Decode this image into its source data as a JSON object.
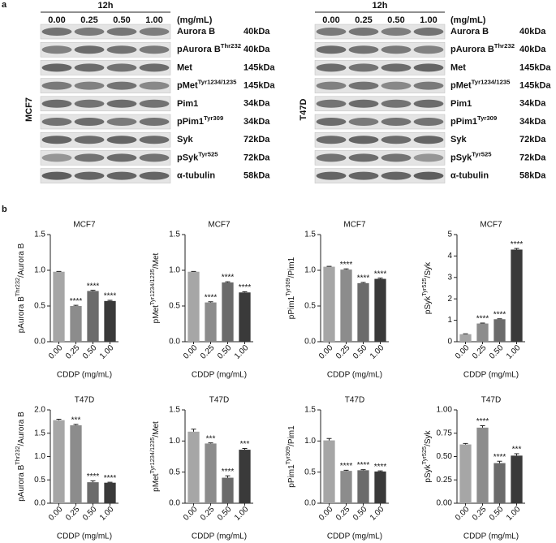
{
  "panel_labels": [
    "a",
    "b"
  ],
  "blots": [
    {
      "cell_line": "MCF7",
      "time": "12h",
      "unit": "(mg/mL)",
      "concentrations": [
        "0.00",
        "0.25",
        "0.50",
        "1.00"
      ],
      "rows": [
        {
          "label": [
            {
              "text": "Aurora  B"
            }
          ],
          "kda": "40kDa"
        },
        {
          "label": [
            {
              "text": "pAurora B"
            },
            {
              "text": "Thr232",
              "sup": true
            }
          ],
          "kda": "40kDa"
        },
        {
          "label": [
            {
              "text": "Met"
            }
          ],
          "kda": "145kDa"
        },
        {
          "label": [
            {
              "text": "pMet"
            },
            {
              "text": "Tyr1234/1235",
              "sup": true
            }
          ],
          "kda": "145kDa"
        },
        {
          "label": [
            {
              "text": "Pim1"
            }
          ],
          "kda": "34kDa"
        },
        {
          "label": [
            {
              "text": "pPim1"
            },
            {
              "text": "Tyr309",
              "sup": true
            }
          ],
          "kda": "34kDa"
        },
        {
          "label": [
            {
              "text": "Syk"
            }
          ],
          "kda": "72kDa"
        },
        {
          "label": [
            {
              "text": "pSyk"
            },
            {
              "text": "Tyr525",
              "sup": true
            }
          ],
          "kda": "72kDa"
        },
        {
          "label": [
            {
              "text": "α-tubulin"
            }
          ],
          "kda": "58kDa"
        }
      ]
    },
    {
      "cell_line": "T47D",
      "time": "12h",
      "unit": "(mg/mL)",
      "concentrations": [
        "0.00",
        "0.25",
        "0.50",
        "1.00"
      ],
      "rows": [
        {
          "label": [
            {
              "text": "Aurora  B"
            }
          ],
          "kda": "40kDa"
        },
        {
          "label": [
            {
              "text": "pAurora B"
            },
            {
              "text": "Thr232",
              "sup": true
            }
          ],
          "kda": "40kDa"
        },
        {
          "label": [
            {
              "text": "Met"
            }
          ],
          "kda": "145kDa"
        },
        {
          "label": [
            {
              "text": "pMet"
            },
            {
              "text": "Tyr1234/1235",
              "sup": true
            }
          ],
          "kda": "145kDa"
        },
        {
          "label": [
            {
              "text": "Pim1"
            }
          ],
          "kda": "34kDa"
        },
        {
          "label": [
            {
              "text": "pPim1"
            },
            {
              "text": "Tyr309",
              "sup": true
            }
          ],
          "kda": "34kDa"
        },
        {
          "label": [
            {
              "text": "Syk"
            }
          ],
          "kda": "72kDa"
        },
        {
          "label": [
            {
              "text": "pSyk"
            },
            {
              "text": "Tyr525",
              "sup": true
            }
          ],
          "kda": "72kDa"
        },
        {
          "label": [
            {
              "text": "α-tubulin"
            }
          ],
          "kda": "58kDa"
        }
      ]
    }
  ],
  "chart_data": [
    {
      "type": "bar",
      "title": "MCF7",
      "ylabel": [
        {
          "text": "pAurora B"
        },
        {
          "text": "Thr232",
          "sup": true
        },
        {
          "text": "/Aurora B"
        }
      ],
      "xlabel": "CDDP (mg/mL)",
      "categories": [
        "0.00",
        "0.25",
        "0.50",
        "1.00"
      ],
      "values": [
        0.98,
        0.5,
        0.71,
        0.57
      ],
      "errors": [
        0.005,
        0.01,
        0.01,
        0.01
      ],
      "annotations": [
        null,
        "****",
        "****",
        "****"
      ],
      "colors": [
        "#a6a6a6",
        "#8c8c8c",
        "#6b6b6b",
        "#3a3a3a"
      ],
      "ylim": [
        0,
        1.5
      ],
      "yticks": [
        {
          "value": 0,
          "label": "0.0"
        },
        0.5,
        {
          "value": 1,
          "label": "1.0"
        },
        1.5
      ]
    },
    {
      "type": "bar",
      "title": "MCF7",
      "ylabel": [
        {
          "text": "pMet"
        },
        {
          "text": "Tyr1234/1235",
          "sup": true
        },
        {
          "text": "/Met"
        }
      ],
      "xlabel": "CDDP (mg/mL)",
      "categories": [
        "0.00",
        "0.25",
        "0.50",
        "1.00"
      ],
      "values": [
        0.98,
        0.55,
        0.83,
        0.69
      ],
      "errors": [
        0.005,
        0.01,
        0.01,
        0.01
      ],
      "annotations": [
        null,
        "****",
        "****",
        "****"
      ],
      "colors": [
        "#a6a6a6",
        "#8c8c8c",
        "#6b6b6b",
        "#3a3a3a"
      ],
      "ylim": [
        0,
        1.5
      ],
      "yticks": [
        {
          "value": 0,
          "label": "0.0"
        },
        0.5,
        {
          "value": 1,
          "label": "1.0"
        },
        1.5
      ]
    },
    {
      "type": "bar",
      "title": "MCF7",
      "ylabel": [
        {
          "text": "pPim1"
        },
        {
          "text": "Tyr309",
          "sup": true
        },
        {
          "text": "/Pim1"
        }
      ],
      "xlabel": "CDDP (mg/mL)",
      "categories": [
        "0.00",
        "0.25",
        "0.50",
        "1.00"
      ],
      "values": [
        1.05,
        1.01,
        0.82,
        0.88
      ],
      "errors": [
        0.005,
        0.01,
        0.01,
        0.01
      ],
      "annotations": [
        null,
        "****",
        "****",
        "****"
      ],
      "colors": [
        "#a6a6a6",
        "#8c8c8c",
        "#6b6b6b",
        "#3a3a3a"
      ],
      "ylim": [
        0,
        1.5
      ],
      "yticks": [
        {
          "value": 0,
          "label": "0.0"
        },
        0.5,
        {
          "value": 1,
          "label": "1.0"
        },
        1.5
      ]
    },
    {
      "type": "bar",
      "title": "MCF7",
      "ylabel": [
        {
          "text": "pSyk"
        },
        {
          "text": "Tyr525",
          "sup": true
        },
        {
          "text": "/Syk"
        }
      ],
      "xlabel": "CDDP (mg/mL)",
      "categories": [
        "0.00",
        "0.25",
        "0.50",
        "1.00"
      ],
      "values": [
        0.35,
        0.85,
        1.05,
        4.3
      ],
      "errors": [
        0.02,
        0.02,
        0.02,
        0.05
      ],
      "annotations": [
        null,
        "****",
        "****",
        "****"
      ],
      "colors": [
        "#a6a6a6",
        "#8c8c8c",
        "#6b6b6b",
        "#3a3a3a"
      ],
      "ylim": [
        0,
        5
      ],
      "yticks": [
        0,
        1,
        2,
        3,
        4,
        5
      ]
    },
    {
      "type": "bar",
      "title": "T47D",
      "ylabel": [
        {
          "text": "pAurora B"
        },
        {
          "text": "Thr232",
          "sup": true
        },
        {
          "text": "/Aurora B"
        }
      ],
      "xlabel": "CDDP (mg/mL)",
      "categories": [
        "0.00",
        "0.25",
        "0.50",
        "1.00"
      ],
      "values": [
        1.78,
        1.67,
        0.45,
        0.44
      ],
      "errors": [
        0.02,
        0.02,
        0.03,
        0.01
      ],
      "annotations": [
        null,
        "***",
        "****",
        "****"
      ],
      "colors": [
        "#a6a6a6",
        "#8c8c8c",
        "#6b6b6b",
        "#3a3a3a"
      ],
      "ylim": [
        0,
        2
      ],
      "yticks": [
        {
          "value": 0,
          "label": "0.0"
        },
        0.5,
        {
          "value": 1,
          "label": "1.0"
        },
        1.5,
        {
          "value": 2,
          "label": "2.0"
        }
      ]
    },
    {
      "type": "bar",
      "title": "T47D",
      "ylabel": [
        {
          "text": "pMet"
        },
        {
          "text": "Tyr1234/1235",
          "sup": true
        },
        {
          "text": "/Met"
        }
      ],
      "xlabel": "CDDP (mg/mL)",
      "categories": [
        "0.00",
        "0.25",
        "0.50",
        "1.00"
      ],
      "values": [
        1.15,
        0.96,
        0.41,
        0.86
      ],
      "errors": [
        0.04,
        0.01,
        0.03,
        0.02
      ],
      "annotations": [
        null,
        "***",
        "****",
        "***"
      ],
      "colors": [
        "#a6a6a6",
        "#8c8c8c",
        "#6b6b6b",
        "#3a3a3a"
      ],
      "ylim": [
        0,
        1.5
      ],
      "yticks": [
        {
          "value": 0,
          "label": "0.0"
        },
        0.5,
        {
          "value": 1,
          "label": "1.0"
        },
        1.5
      ]
    },
    {
      "type": "bar",
      "title": "T47D",
      "ylabel": [
        {
          "text": "pPim1"
        },
        {
          "text": "Tyr309",
          "sup": true
        },
        {
          "text": "/Pim1"
        }
      ],
      "xlabel": "CDDP (mg/mL)",
      "categories": [
        "0.00",
        "0.25",
        "0.50",
        "1.00"
      ],
      "values": [
        1.01,
        0.52,
        0.53,
        0.51
      ],
      "errors": [
        0.03,
        0.01,
        0.01,
        0.01
      ],
      "annotations": [
        null,
        "****",
        "****",
        "****"
      ],
      "colors": [
        "#a6a6a6",
        "#8c8c8c",
        "#6b6b6b",
        "#3a3a3a"
      ],
      "ylim": [
        0,
        1.5
      ],
      "yticks": [
        {
          "value": 0,
          "label": "0.0"
        },
        0.5,
        {
          "value": 1,
          "label": "1.0"
        },
        1.5
      ]
    },
    {
      "type": "bar",
      "title": "T47D",
      "ylabel": [
        {
          "text": "pSyk"
        },
        {
          "text": "Tyr525",
          "sup": true
        },
        {
          "text": "/Syk"
        }
      ],
      "xlabel": "CDDP (mg/mL)",
      "categories": [
        "0.00",
        "0.25",
        "0.50",
        "1.00"
      ],
      "values": [
        0.63,
        0.81,
        0.43,
        0.51
      ],
      "errors": [
        0.01,
        0.02,
        0.02,
        0.02
      ],
      "annotations": [
        null,
        "****",
        "****",
        "***"
      ],
      "colors": [
        "#a6a6a6",
        "#8c8c8c",
        "#6b6b6b",
        "#3a3a3a"
      ],
      "ylim": [
        0,
        1
      ],
      "yticks": [
        {
          "value": 0,
          "label": "0.00"
        },
        {
          "value": 0.25,
          "label": "0.25"
        },
        {
          "value": 0.5,
          "label": "0.50"
        },
        {
          "value": 0.75,
          "label": "0.75"
        },
        {
          "value": 1,
          "label": "1.00"
        }
      ]
    }
  ]
}
